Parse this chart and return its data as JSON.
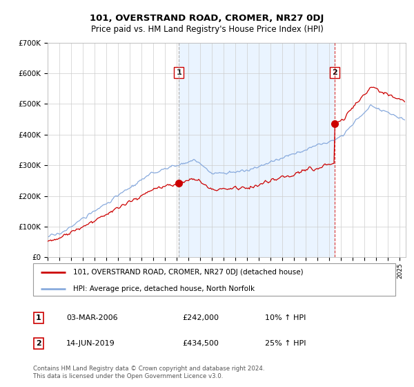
{
  "title": "101, OVERSTRAND ROAD, CROMER, NR27 0DJ",
  "subtitle": "Price paid vs. HM Land Registry's House Price Index (HPI)",
  "ylim": [
    0,
    700000
  ],
  "yticks": [
    0,
    100000,
    200000,
    300000,
    400000,
    500000,
    600000,
    700000
  ],
  "ytick_labels": [
    "£0",
    "£100K",
    "£200K",
    "£300K",
    "£400K",
    "£500K",
    "£600K",
    "£700K"
  ],
  "legend_line1": "101, OVERSTRAND ROAD, CROMER, NR27 0DJ (detached house)",
  "legend_line2": "HPI: Average price, detached house, North Norfolk",
  "transaction1_date": "03-MAR-2006",
  "transaction1_price": "£242,000",
  "transaction1_hpi": "10% ↑ HPI",
  "transaction2_date": "14-JUN-2019",
  "transaction2_price": "£434,500",
  "transaction2_hpi": "25% ↑ HPI",
  "footnote": "Contains HM Land Registry data © Crown copyright and database right 2024.\nThis data is licensed under the Open Government Licence v3.0.",
  "line_color_red": "#cc0000",
  "line_color_blue": "#88aadd",
  "shade_color": "#ddeeff",
  "vline1_x": 2006.17,
  "vline2_x": 2019.45,
  "marker1_y": 242000,
  "marker2_y": 434500,
  "background_color": "#ffffff",
  "grid_color": "#cccccc",
  "xlim_left": 1995.0,
  "xlim_right": 2025.5
}
